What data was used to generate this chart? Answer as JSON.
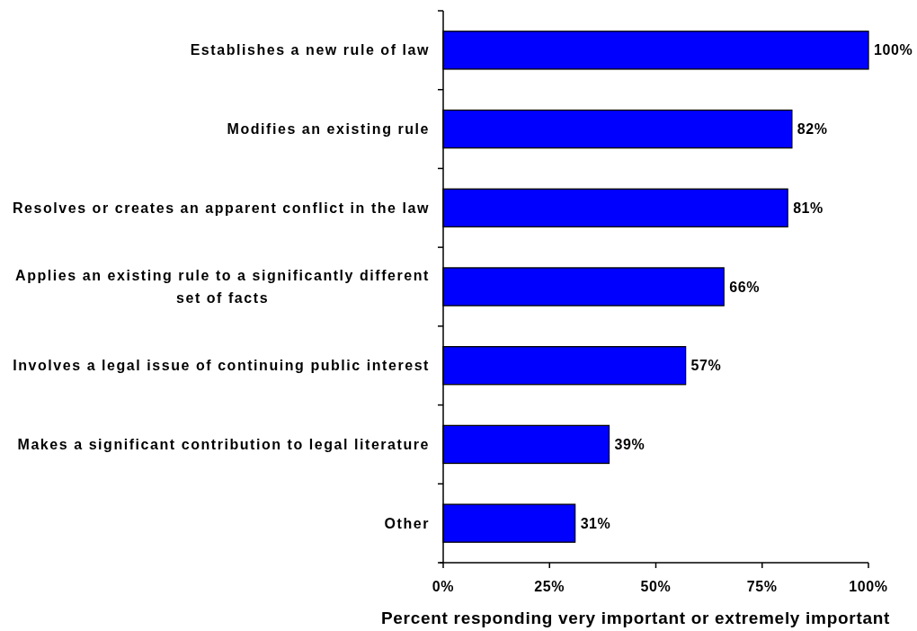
{
  "chart_data": {
    "type": "bar",
    "orientation": "horizontal",
    "categories": [
      "Establishes a new rule of law",
      "Modifies an existing rule",
      "Resolves or creates an apparent conflict in the law",
      "Applies an existing rule to a significantly different set of facts",
      "Involves a legal issue of continuing public interest",
      "Makes a significant contribution to legal literature",
      "Other"
    ],
    "values": [
      100,
      82,
      81,
      66,
      57,
      39,
      31
    ],
    "value_labels": [
      "100%",
      "82%",
      "81%",
      "66%",
      "57%",
      "39%",
      "31%"
    ],
    "color": "#0000ff",
    "xlabel": "Percent responding very important or extremely important",
    "xlim": [
      0,
      100
    ],
    "xticks": [
      {
        "value": 0,
        "label": "0%"
      },
      {
        "value": 25,
        "label": "25%"
      },
      {
        "value": 50,
        "label": "50%"
      },
      {
        "value": 75,
        "label": "75%"
      },
      {
        "value": 100,
        "label": "100%"
      }
    ]
  }
}
